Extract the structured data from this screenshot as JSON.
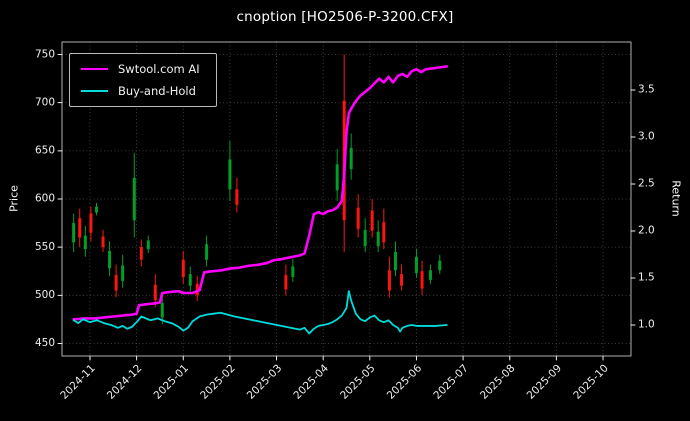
{
  "chart_data": {
    "type": "line",
    "title": "cnoption [HO2506-P-3200.CFX]",
    "ylabel_left": "Price",
    "ylabel_right": "Return",
    "background": "#000000",
    "grid_color": "#4a4a4a",
    "text_color": "#eeeeee",
    "spine_color": "#b0b0b0",
    "layout": {
      "legend_position": "upper left",
      "grid": true
    },
    "x_axis": {
      "range_months": [
        -0.6,
        11.6
      ],
      "tick_labels": [
        "2024-11",
        "2024-12",
        "2025-01",
        "2025-02",
        "2025-03",
        "2025-04",
        "2025-05",
        "2025-06",
        "2025-07",
        "2025-08",
        "2025-09",
        "2025-10"
      ]
    },
    "price_axis": {
      "range": [
        437,
        763
      ],
      "ticks": [
        450,
        500,
        550,
        600,
        650,
        700,
        750
      ]
    },
    "return_axis": {
      "range": [
        0.67,
        4.01
      ],
      "ticks": [
        1.0,
        1.5,
        2.0,
        2.5,
        3.0,
        3.5
      ]
    },
    "series": [
      {
        "name": "Swtool.com AI",
        "color": "#ff00ff",
        "axis": "return",
        "linewidth": 2.6,
        "points": [
          [
            -0.35,
            1.06
          ],
          [
            -0.1,
            1.07
          ],
          [
            0.1,
            1.07
          ],
          [
            0.3,
            1.08
          ],
          [
            0.5,
            1.09
          ],
          [
            0.7,
            1.1
          ],
          [
            0.9,
            1.11
          ],
          [
            1.0,
            1.12
          ],
          [
            1.05,
            1.21
          ],
          [
            1.2,
            1.22
          ],
          [
            1.4,
            1.23
          ],
          [
            1.5,
            1.24
          ],
          [
            1.55,
            1.34
          ],
          [
            1.7,
            1.35
          ],
          [
            1.9,
            1.36
          ],
          [
            2.0,
            1.34
          ],
          [
            2.2,
            1.34
          ],
          [
            2.35,
            1.37
          ],
          [
            2.45,
            1.56
          ],
          [
            2.6,
            1.57
          ],
          [
            2.8,
            1.58
          ],
          [
            3.0,
            1.6
          ],
          [
            3.2,
            1.61
          ],
          [
            3.4,
            1.63
          ],
          [
            3.6,
            1.64
          ],
          [
            3.8,
            1.66
          ],
          [
            3.95,
            1.69
          ],
          [
            4.1,
            1.7
          ],
          [
            4.3,
            1.72
          ],
          [
            4.5,
            1.74
          ],
          [
            4.6,
            1.76
          ],
          [
            4.7,
            1.95
          ],
          [
            4.8,
            2.18
          ],
          [
            4.9,
            2.2
          ],
          [
            5.0,
            2.18
          ],
          [
            5.1,
            2.21
          ],
          [
            5.2,
            2.22
          ],
          [
            5.3,
            2.25
          ],
          [
            5.4,
            2.32
          ],
          [
            5.45,
            2.6
          ],
          [
            5.5,
            3.05
          ],
          [
            5.55,
            3.25
          ],
          [
            5.6,
            3.3
          ],
          [
            5.7,
            3.38
          ],
          [
            5.8,
            3.44
          ],
          [
            5.9,
            3.48
          ],
          [
            6.0,
            3.52
          ],
          [
            6.1,
            3.57
          ],
          [
            6.2,
            3.62
          ],
          [
            6.3,
            3.58
          ],
          [
            6.4,
            3.64
          ],
          [
            6.5,
            3.58
          ],
          [
            6.6,
            3.65
          ],
          [
            6.7,
            3.67
          ],
          [
            6.8,
            3.64
          ],
          [
            6.9,
            3.7
          ],
          [
            7.0,
            3.72
          ],
          [
            7.1,
            3.69
          ],
          [
            7.2,
            3.72
          ],
          [
            7.35,
            3.73
          ],
          [
            7.5,
            3.74
          ],
          [
            7.65,
            3.75
          ]
        ]
      },
      {
        "name": "Buy-and-Hold",
        "color": "#00dcdc",
        "axis": "return",
        "linewidth": 1.8,
        "points": [
          [
            -0.35,
            1.05
          ],
          [
            -0.25,
            1.02
          ],
          [
            -0.15,
            1.06
          ],
          [
            0.0,
            1.03
          ],
          [
            0.15,
            1.05
          ],
          [
            0.3,
            1.02
          ],
          [
            0.45,
            1.0
          ],
          [
            0.6,
            0.97
          ],
          [
            0.7,
            0.99
          ],
          [
            0.8,
            0.96
          ],
          [
            0.9,
            0.98
          ],
          [
            1.0,
            1.03
          ],
          [
            1.1,
            1.09
          ],
          [
            1.2,
            1.07
          ],
          [
            1.3,
            1.05
          ],
          [
            1.45,
            1.07
          ],
          [
            1.6,
            1.04
          ],
          [
            1.75,
            1.02
          ],
          [
            1.9,
            0.98
          ],
          [
            2.0,
            0.94
          ],
          [
            2.1,
            0.97
          ],
          [
            2.2,
            1.04
          ],
          [
            2.35,
            1.09
          ],
          [
            2.5,
            1.11
          ],
          [
            2.65,
            1.12
          ],
          [
            2.8,
            1.13
          ],
          [
            2.95,
            1.11
          ],
          [
            3.1,
            1.09
          ],
          [
            3.3,
            1.07
          ],
          [
            3.5,
            1.05
          ],
          [
            3.7,
            1.03
          ],
          [
            3.9,
            1.01
          ],
          [
            4.1,
            0.99
          ],
          [
            4.3,
            0.97
          ],
          [
            4.5,
            0.95
          ],
          [
            4.6,
            0.97
          ],
          [
            4.7,
            0.91
          ],
          [
            4.8,
            0.96
          ],
          [
            4.9,
            0.99
          ],
          [
            5.0,
            1.0
          ],
          [
            5.1,
            1.01
          ],
          [
            5.2,
            1.03
          ],
          [
            5.3,
            1.06
          ],
          [
            5.4,
            1.1
          ],
          [
            5.5,
            1.18
          ],
          [
            5.55,
            1.36
          ],
          [
            5.6,
            1.26
          ],
          [
            5.7,
            1.12
          ],
          [
            5.8,
            1.06
          ],
          [
            5.9,
            1.04
          ],
          [
            6.0,
            1.08
          ],
          [
            6.1,
            1.1
          ],
          [
            6.2,
            1.05
          ],
          [
            6.3,
            1.03
          ],
          [
            6.4,
            1.05
          ],
          [
            6.5,
            1.0
          ],
          [
            6.6,
            0.97
          ],
          [
            6.65,
            0.93
          ],
          [
            6.7,
            0.97
          ],
          [
            6.8,
            0.99
          ],
          [
            6.9,
            1.0
          ],
          [
            7.0,
            0.99
          ],
          [
            7.2,
            0.99
          ],
          [
            7.4,
            0.99
          ],
          [
            7.65,
            1.0
          ]
        ]
      }
    ],
    "candles": {
      "up_color": "#00a028",
      "down_color": "#ff1414",
      "items": [
        {
          "x": -0.35,
          "low": 545,
          "high": 585,
          "body": [
            555,
            575
          ],
          "dir": "up"
        },
        {
          "x": -0.22,
          "low": 550,
          "high": 590,
          "body": [
            560,
            580
          ],
          "dir": "down"
        },
        {
          "x": -0.1,
          "low": 540,
          "high": 572,
          "body": [
            548,
            562
          ],
          "dir": "up"
        },
        {
          "x": 0.02,
          "low": 556,
          "high": 592,
          "body": [
            565,
            585
          ],
          "dir": "down"
        },
        {
          "x": 0.14,
          "low": 583,
          "high": 596,
          "body": [
            586,
            592
          ],
          "dir": "up"
        },
        {
          "x": 0.28,
          "low": 545,
          "high": 568,
          "body": [
            550,
            561
          ],
          "dir": "down"
        },
        {
          "x": 0.42,
          "low": 520,
          "high": 556,
          "body": [
            528,
            546
          ],
          "dir": "up"
        },
        {
          "x": 0.56,
          "low": 498,
          "high": 532,
          "body": [
            505,
            521
          ],
          "dir": "down"
        },
        {
          "x": 0.7,
          "low": 508,
          "high": 542,
          "body": [
            515,
            531
          ],
          "dir": "up"
        },
        {
          "x": 0.95,
          "low": 560,
          "high": 648,
          "body": [
            578,
            622
          ],
          "dir": "up"
        },
        {
          "x": 1.1,
          "low": 530,
          "high": 558,
          "body": [
            537,
            550
          ],
          "dir": "down"
        },
        {
          "x": 1.25,
          "low": 544,
          "high": 562,
          "body": [
            548,
            557
          ],
          "dir": "up"
        },
        {
          "x": 1.4,
          "low": 488,
          "high": 522,
          "body": [
            495,
            511
          ],
          "dir": "down"
        },
        {
          "x": 1.55,
          "low": 470,
          "high": 502,
          "body": [
            477,
            492
          ],
          "dir": "up"
        },
        {
          "x": 2.0,
          "low": 512,
          "high": 546,
          "body": [
            519,
            537
          ],
          "dir": "down"
        },
        {
          "x": 2.15,
          "low": 504,
          "high": 530,
          "body": [
            510,
            522
          ],
          "dir": "up"
        },
        {
          "x": 2.3,
          "low": 494,
          "high": 520,
          "body": [
            500,
            512
          ],
          "dir": "down"
        },
        {
          "x": 2.5,
          "low": 530,
          "high": 562,
          "body": [
            537,
            553
          ],
          "dir": "up"
        },
        {
          "x": 3.0,
          "low": 598,
          "high": 660,
          "body": [
            610,
            641
          ],
          "dir": "up"
        },
        {
          "x": 3.15,
          "low": 586,
          "high": 622,
          "body": [
            594,
            610
          ],
          "dir": "down"
        },
        {
          "x": 4.2,
          "low": 500,
          "high": 532,
          "body": [
            506,
            521
          ],
          "dir": "down"
        },
        {
          "x": 4.35,
          "low": 514,
          "high": 538,
          "body": [
            519,
            530
          ],
          "dir": "up"
        },
        {
          "x": 5.3,
          "low": 598,
          "high": 652,
          "body": [
            609,
            636
          ],
          "dir": "up"
        },
        {
          "x": 5.45,
          "low": 545,
          "high": 750,
          "body": [
            578,
            702
          ],
          "dir": "down"
        },
        {
          "x": 5.6,
          "low": 620,
          "high": 668,
          "body": [
            631,
            653
          ],
          "dir": "up"
        },
        {
          "x": 5.75,
          "low": 560,
          "high": 605,
          "body": [
            569,
            591
          ],
          "dir": "down"
        },
        {
          "x": 5.9,
          "low": 545,
          "high": 580,
          "body": [
            551,
            568
          ],
          "dir": "up"
        },
        {
          "x": 6.05,
          "low": 560,
          "high": 600,
          "body": [
            567,
            588
          ],
          "dir": "down"
        },
        {
          "x": 6.18,
          "low": 545,
          "high": 578,
          "body": [
            551,
            566
          ],
          "dir": "up"
        },
        {
          "x": 6.3,
          "low": 548,
          "high": 590,
          "body": [
            555,
            576
          ],
          "dir": "down"
        },
        {
          "x": 6.42,
          "low": 498,
          "high": 540,
          "body": [
            505,
            526
          ],
          "dir": "down"
        },
        {
          "x": 6.55,
          "low": 520,
          "high": 556,
          "body": [
            526,
            545
          ],
          "dir": "up"
        },
        {
          "x": 6.68,
          "low": 505,
          "high": 532,
          "body": [
            510,
            522
          ],
          "dir": "down"
        },
        {
          "x": 7.0,
          "low": 518,
          "high": 548,
          "body": [
            523,
            540
          ],
          "dir": "up"
        },
        {
          "x": 7.12,
          "low": 500,
          "high": 536,
          "body": [
            507,
            525
          ],
          "dir": "down"
        },
        {
          "x": 7.3,
          "low": 512,
          "high": 532,
          "body": [
            516,
            526
          ],
          "dir": "up"
        },
        {
          "x": 7.5,
          "low": 522,
          "high": 542,
          "body": [
            526,
            536
          ],
          "dir": "up"
        }
      ]
    }
  }
}
